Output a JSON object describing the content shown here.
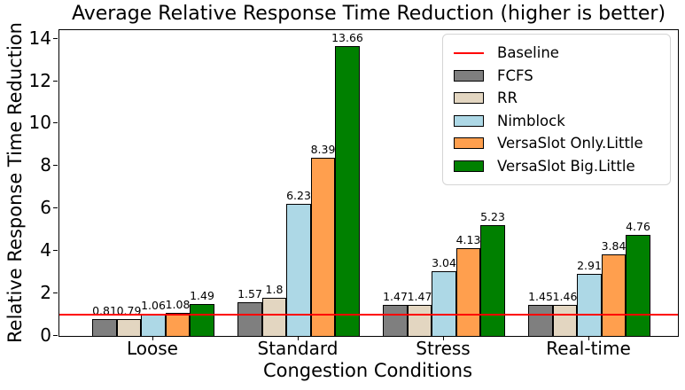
{
  "chart_data": {
    "type": "bar",
    "title": "Average Relative Response Time Reduction (higher is better)",
    "xlabel": "Congestion Conditions",
    "ylabel": "Relative Response Time Reduction",
    "categories": [
      "Loose",
      "Standard",
      "Stress",
      "Real-time"
    ],
    "series": [
      {
        "name": "FCFS",
        "color": "#7f7f7f",
        "values": [
          0.81,
          1.57,
          1.47,
          1.45
        ]
      },
      {
        "name": "RR",
        "color": "#e3d6c1",
        "values": [
          0.79,
          1.8,
          1.47,
          1.46
        ]
      },
      {
        "name": "Nimblock",
        "color": "#add8e6",
        "values": [
          1.06,
          6.23,
          3.04,
          2.91
        ]
      },
      {
        "name": "VersaSlot Only.Little",
        "color": "#ff9f4e",
        "values": [
          1.08,
          8.39,
          4.13,
          3.84
        ]
      },
      {
        "name": "VersaSlot Big.Little",
        "color": "#008000",
        "values": [
          1.49,
          13.66,
          5.23,
          4.76
        ]
      }
    ],
    "baseline": {
      "label": "Baseline",
      "value": 1,
      "color": "#ff0000"
    },
    "yticks": [
      0,
      2,
      4,
      6,
      8,
      10,
      12,
      14
    ],
    "ylim": [
      0,
      14.4
    ],
    "grid": false,
    "legend_position": "upper right",
    "legend_entries": [
      "Baseline",
      "FCFS",
      "RR",
      "Nimblock",
      "VersaSlot Only.Little",
      "VersaSlot Big.Little"
    ],
    "bar_edge_color": "#000000",
    "value_labels_shown": true
  }
}
